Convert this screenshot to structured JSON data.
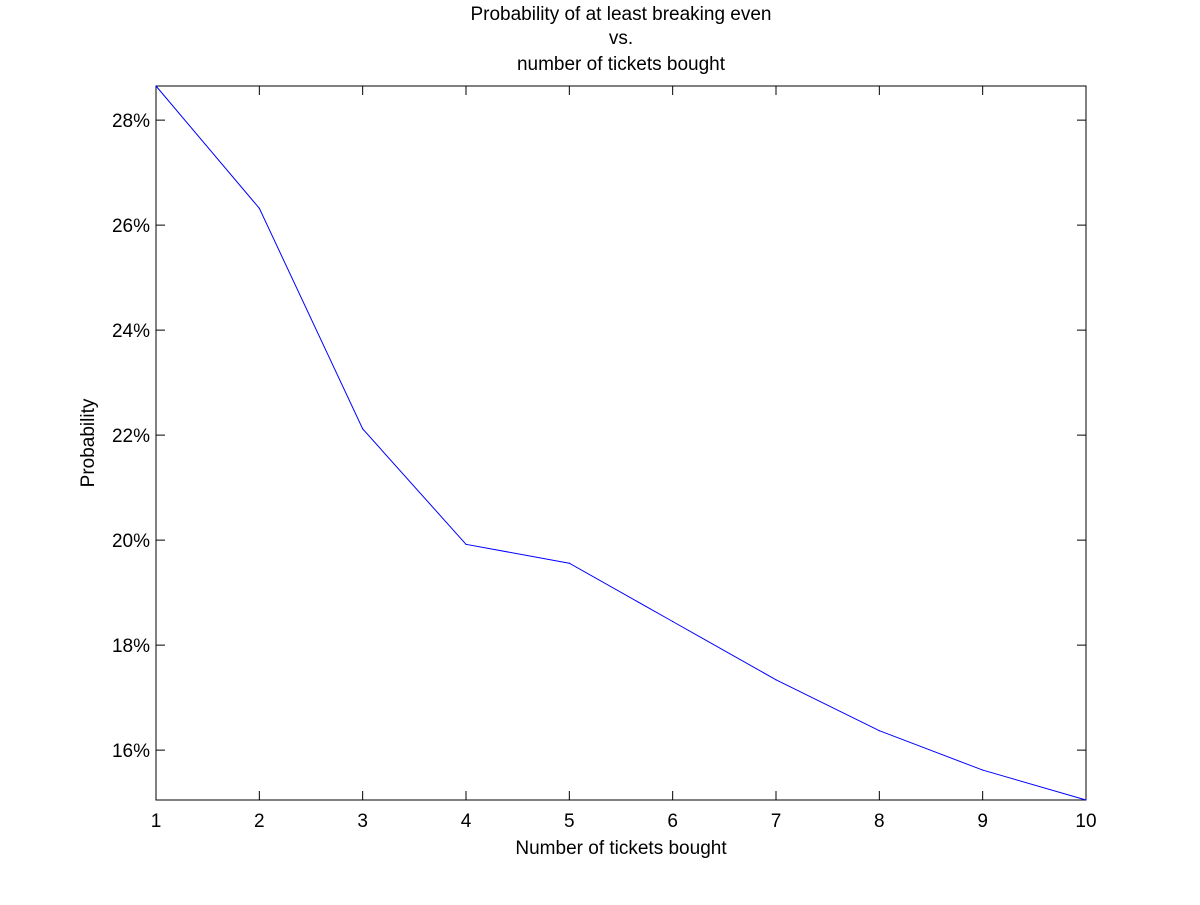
{
  "chart_data": {
    "type": "line",
    "title_lines": [
      "Probability of at least breaking even",
      "vs.",
      "number of tickets bought"
    ],
    "xlabel": "Number of tickets bought",
    "ylabel": "Probability",
    "xlim": [
      1,
      10
    ],
    "ylim": [
      15.05,
      28.65
    ],
    "x_ticks": [
      1,
      2,
      3,
      4,
      5,
      6,
      7,
      8,
      9,
      10
    ],
    "y_ticks": [
      16,
      18,
      20,
      22,
      24,
      26,
      28
    ],
    "y_tick_labels": [
      "16%",
      "18%",
      "20%",
      "22%",
      "24%",
      "26%",
      "28%"
    ],
    "grid": false,
    "series": [
      {
        "color": "#0000ff",
        "x": [
          1,
          2,
          3,
          4,
          5,
          6,
          7,
          8,
          9,
          10
        ],
        "y": [
          28.65,
          26.32,
          22.12,
          19.92,
          19.56,
          18.45,
          17.34,
          16.37,
          15.62,
          15.05
        ]
      }
    ]
  }
}
